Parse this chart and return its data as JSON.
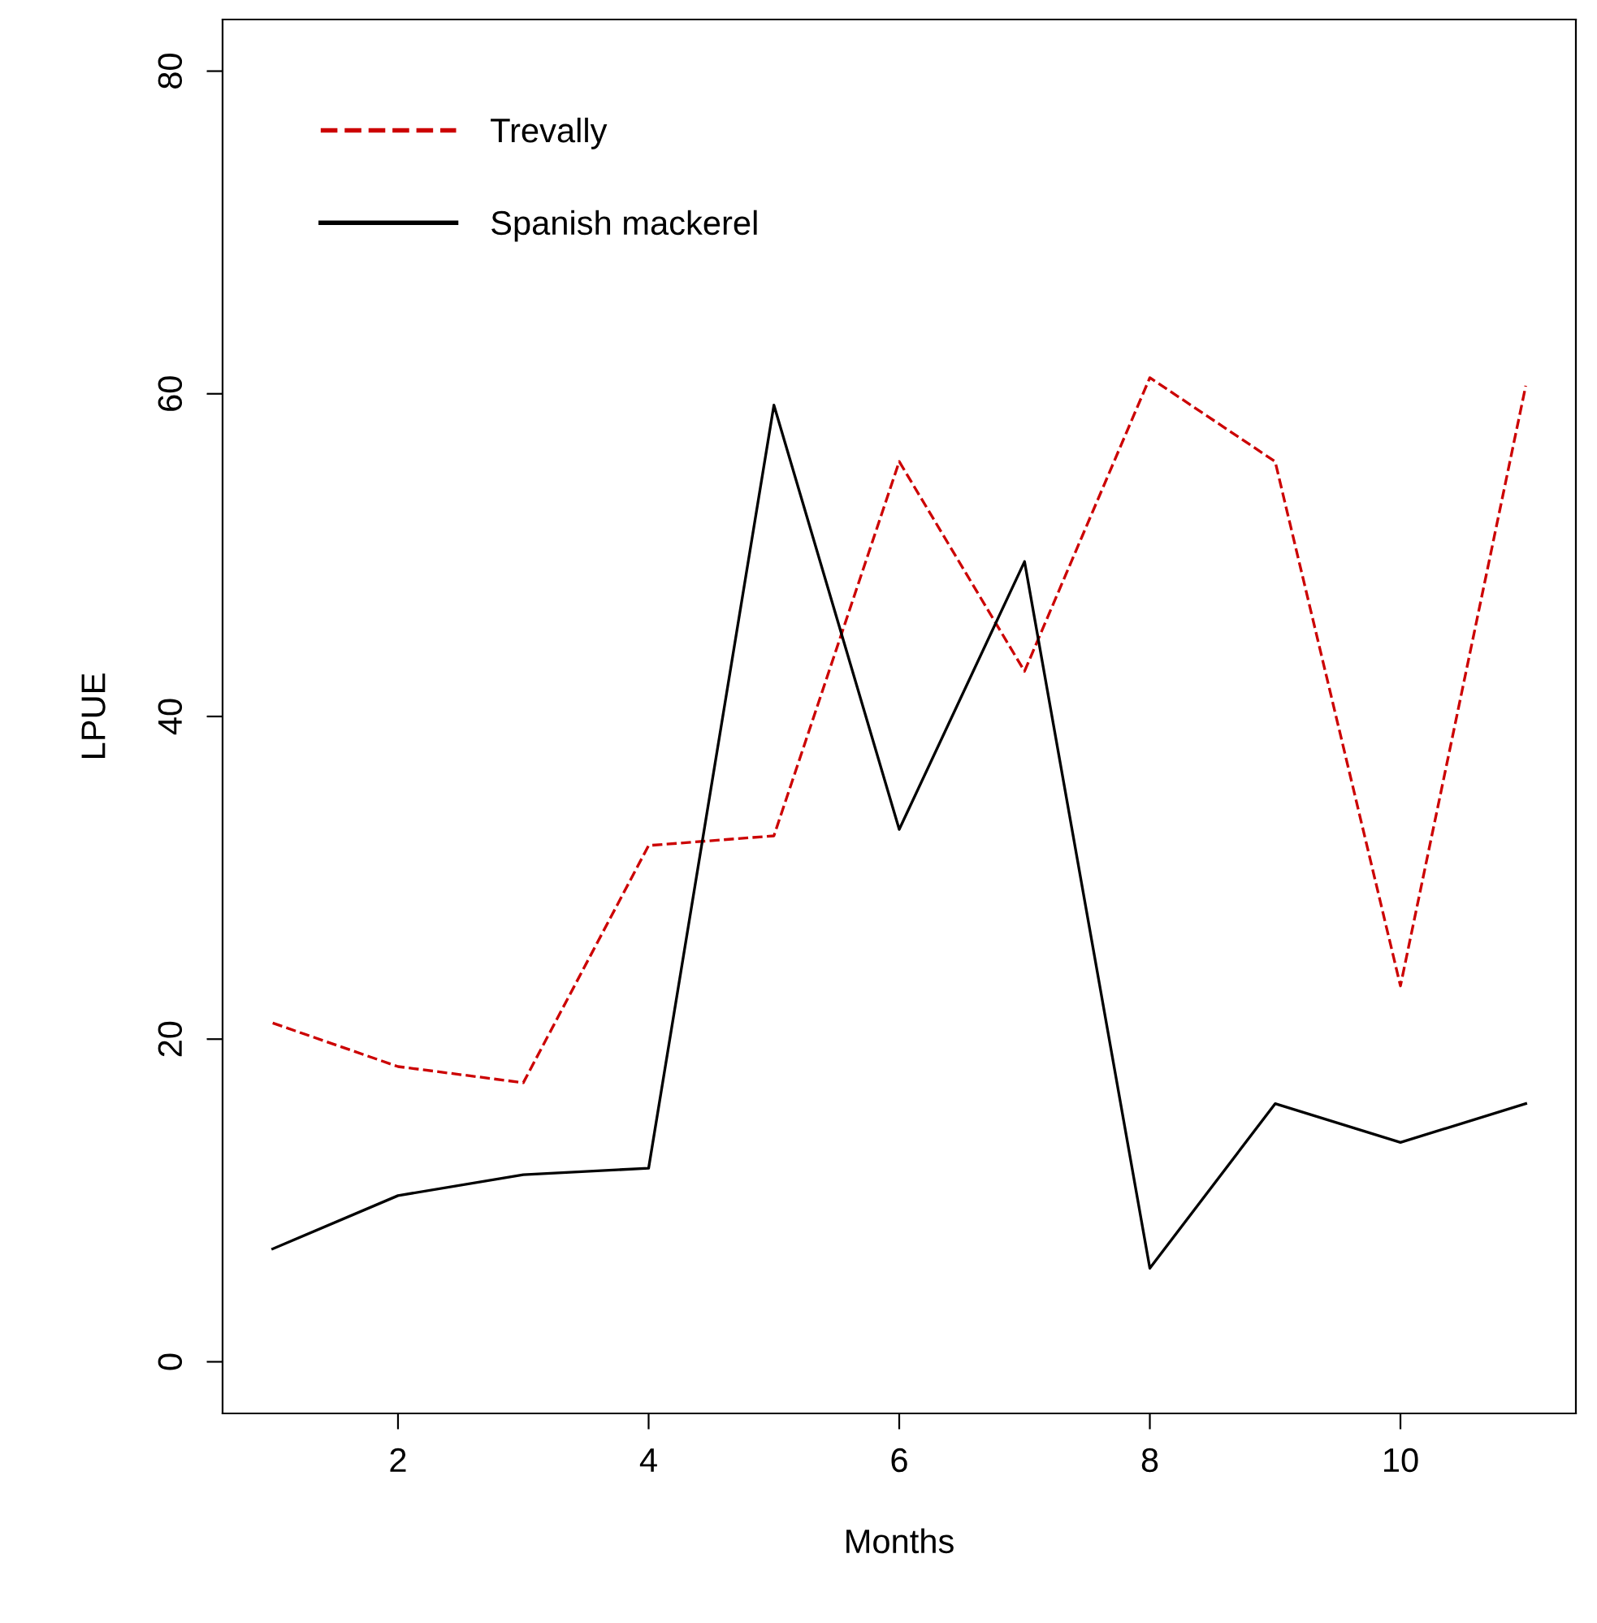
{
  "chart_data": {
    "type": "line",
    "xlabel": "Months",
    "ylabel": "LPUE",
    "x": [
      1,
      2,
      3,
      4,
      5,
      6,
      7,
      8,
      9,
      10,
      11
    ],
    "series": [
      {
        "name": "Trevally",
        "color": "#cc0000",
        "line_style": "dashed",
        "values": [
          21,
          18.3,
          17.3,
          32,
          32.6,
          55.8,
          42.8,
          61,
          55.8,
          23.3,
          60.5
        ]
      },
      {
        "name": "Spanish mackerel",
        "color": "#000000",
        "line_style": "solid",
        "values": [
          7,
          10.3,
          11.6,
          12,
          59.3,
          33,
          49.6,
          5.8,
          16,
          13.6,
          16
        ]
      }
    ],
    "xlim": [
      0.6,
      11.4
    ],
    "ylim": [
      -3.2,
      83.2
    ],
    "xticks": [
      2,
      4,
      6,
      8,
      10
    ],
    "yticks": [
      0,
      20,
      40,
      60,
      80
    ],
    "grid": false,
    "legend": "top left",
    "marker": "none"
  }
}
